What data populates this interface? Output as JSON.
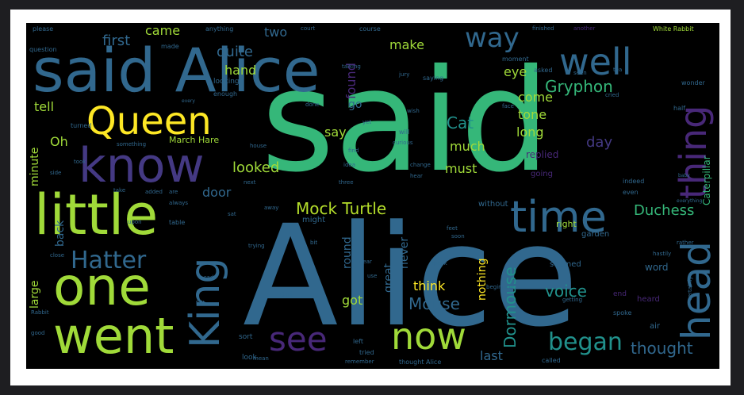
{
  "wordcloud": {
    "words": [
      {
        "text": "said",
        "color": "#35b779",
        "weight": 100
      },
      {
        "text": "Alice",
        "color": "#31688e",
        "weight": 95
      },
      {
        "text": "said Alice",
        "color": "#31688e",
        "weight": 45
      },
      {
        "text": "little",
        "color": "#a0da39",
        "weight": 40
      },
      {
        "text": "one",
        "color": "#a0da39",
        "weight": 38
      },
      {
        "text": "went",
        "color": "#a0da39",
        "weight": 36
      },
      {
        "text": "know",
        "color": "#443983",
        "weight": 34
      },
      {
        "text": "Queen",
        "color": "#fde725",
        "weight": 30
      },
      {
        "text": "King",
        "color": "#31688e",
        "weight": 28
      },
      {
        "text": "head",
        "color": "#31688e",
        "weight": 28
      },
      {
        "text": "thing",
        "color": "#482878",
        "weight": 26
      },
      {
        "text": "time",
        "color": "#31688e",
        "weight": 26
      },
      {
        "text": "well",
        "color": "#31688e",
        "weight": 24
      },
      {
        "text": "now",
        "color": "#a0da39",
        "weight": 24
      },
      {
        "text": "see",
        "color": "#482878",
        "weight": 22
      },
      {
        "text": "Hatter",
        "color": "#31688e",
        "weight": 20
      },
      {
        "text": "way",
        "color": "#31688e",
        "weight": 19
      },
      {
        "text": "began",
        "color": "#21918c",
        "weight": 16
      },
      {
        "text": "Mock Turtle",
        "color": "#b5de2b",
        "weight": 12
      },
      {
        "text": "Gryphon",
        "color": "#35b779",
        "weight": 12
      },
      {
        "text": "Duchess",
        "color": "#35b779",
        "weight": 11
      },
      {
        "text": "Caterpillar",
        "color": "#35b779",
        "weight": 8
      },
      {
        "text": "thought",
        "color": "#31688e",
        "weight": 11
      },
      {
        "text": "Mouse",
        "color": "#31688e",
        "weight": 11
      },
      {
        "text": "Dormouse",
        "color": "#21918c",
        "weight": 10
      },
      {
        "text": "voice",
        "color": "#21918c",
        "weight": 10
      },
      {
        "text": "looked",
        "color": "#a0da39",
        "weight": 10
      },
      {
        "text": "Cat",
        "color": "#21918c",
        "weight": 10
      },
      {
        "text": "first",
        "color": "#31688e",
        "weight": 10
      },
      {
        "text": "quite",
        "color": "#31688e",
        "weight": 9
      },
      {
        "text": "hand",
        "color": "#a0da39",
        "weight": 9
      },
      {
        "text": "came",
        "color": "#a0da39",
        "weight": 9
      },
      {
        "text": "two",
        "color": "#31688e",
        "weight": 9
      },
      {
        "text": "make",
        "color": "#a0da39",
        "weight": 9
      },
      {
        "text": "found",
        "color": "#482878",
        "weight": 9
      },
      {
        "text": "eye",
        "color": "#a0da39",
        "weight": 9
      },
      {
        "text": "come",
        "color": "#a0da39",
        "weight": 9
      },
      {
        "text": "tone",
        "color": "#a0da39",
        "weight": 9
      },
      {
        "text": "long",
        "color": "#a0da39",
        "weight": 9
      },
      {
        "text": "day",
        "color": "#443983",
        "weight": 9
      },
      {
        "text": "much",
        "color": "#a0da39",
        "weight": 9
      },
      {
        "text": "must",
        "color": "#a0da39",
        "weight": 9
      },
      {
        "text": "say",
        "color": "#a0da39",
        "weight": 9
      },
      {
        "text": "go",
        "color": "#31688e",
        "weight": 8
      },
      {
        "text": "tell",
        "color": "#a0da39",
        "weight": 8
      },
      {
        "text": "Oh",
        "color": "#a0da39",
        "weight": 8
      },
      {
        "text": "door",
        "color": "#31688e",
        "weight": 8
      },
      {
        "text": "back",
        "color": "#31688e",
        "weight": 8
      },
      {
        "text": "minute",
        "color": "#a0da39",
        "weight": 8
      },
      {
        "text": "large",
        "color": "#a0da39",
        "weight": 8
      },
      {
        "text": "round",
        "color": "#31688e",
        "weight": 8
      },
      {
        "text": "great",
        "color": "#31688e",
        "weight": 8
      },
      {
        "text": "never",
        "color": "#31688e",
        "weight": 8
      },
      {
        "text": "nothing",
        "color": "#fde725",
        "weight": 8
      },
      {
        "text": "think",
        "color": "#fde725",
        "weight": 9
      },
      {
        "text": "got",
        "color": "#a0da39",
        "weight": 9
      },
      {
        "text": "last",
        "color": "#31688e",
        "weight": 9
      },
      {
        "text": "March Hare",
        "color": "#a0da39",
        "weight": 6
      },
      {
        "text": "White Rabbit",
        "color": "#a0da39",
        "weight": 4
      },
      {
        "text": "replied",
        "color": "#482878",
        "weight": 6
      },
      {
        "text": "going",
        "color": "#482878",
        "weight": 5
      },
      {
        "text": "word",
        "color": "#31688e",
        "weight": 6
      },
      {
        "text": "heard",
        "color": "#482878",
        "weight": 5
      },
      {
        "text": "seemed",
        "color": "#31688e",
        "weight": 5
      },
      {
        "text": "right",
        "color": "#a0da39",
        "weight": 5
      },
      {
        "text": "garden",
        "color": "#31688e",
        "weight": 5
      },
      {
        "text": "without",
        "color": "#31688e",
        "weight": 5
      },
      {
        "text": "might",
        "color": "#31688e",
        "weight": 5
      },
      {
        "text": "put",
        "color": "#31688e",
        "weight": 5
      },
      {
        "text": "end",
        "color": "#482878",
        "weight": 5
      },
      {
        "text": "air",
        "color": "#31688e",
        "weight": 5
      },
      {
        "text": "spoke",
        "color": "#31688e",
        "weight": 4
      },
      {
        "text": "called",
        "color": "#31688e",
        "weight": 4
      },
      {
        "text": "left",
        "color": "#31688e",
        "weight": 4
      },
      {
        "text": "tried",
        "color": "#31688e",
        "weight": 4
      },
      {
        "text": "look",
        "color": "#31688e",
        "weight": 4
      },
      {
        "text": "sort",
        "color": "#31688e",
        "weight": 4
      },
      {
        "text": "thought Alice",
        "color": "#31688e",
        "weight": 4
      },
      {
        "text": "course",
        "color": "#31688e",
        "weight": 4
      },
      {
        "text": "anything",
        "color": "#31688e",
        "weight": 4
      },
      {
        "text": "please",
        "color": "#31688e",
        "weight": 4
      },
      {
        "text": "question",
        "color": "#31688e",
        "weight": 4
      },
      {
        "text": "turned",
        "color": "#31688e",
        "weight": 4
      },
      {
        "text": "table",
        "color": "#31688e",
        "weight": 4
      },
      {
        "text": "mean",
        "color": "#31688e",
        "weight": 3
      },
      {
        "text": "feet",
        "color": "#31688e",
        "weight": 3
      },
      {
        "text": "wonder",
        "color": "#31688e",
        "weight": 4
      },
      {
        "text": "half",
        "color": "#31688e",
        "weight": 4
      },
      {
        "text": "moment",
        "color": "#31688e",
        "weight": 4
      },
      {
        "text": "asked",
        "color": "#31688e",
        "weight": 4
      },
      {
        "text": "saying",
        "color": "#31688e",
        "weight": 4
      },
      {
        "text": "talking",
        "color": "#31688e",
        "weight": 3
      },
      {
        "text": "jury",
        "color": "#31688e",
        "weight": 3
      },
      {
        "text": "court",
        "color": "#31688e",
        "weight": 3
      },
      {
        "text": "finished",
        "color": "#31688e",
        "weight": 3
      },
      {
        "text": "another",
        "color": "#482878",
        "weight": 3
      },
      {
        "text": "indeed",
        "color": "#31688e",
        "weight": 4
      },
      {
        "text": "even",
        "color": "#31688e",
        "weight": 4
      },
      {
        "text": "certainly",
        "color": "#31688e",
        "weight": 3
      },
      {
        "text": "hastily",
        "color": "#31688e",
        "weight": 3
      },
      {
        "text": "rather",
        "color": "#31688e",
        "weight": 3
      },
      {
        "text": "will",
        "color": "#31688e",
        "weight": 3
      },
      {
        "text": "wish",
        "color": "#31688e",
        "weight": 3
      },
      {
        "text": "curious",
        "color": "#31688e",
        "weight": 3
      },
      {
        "text": "change",
        "color": "#31688e",
        "weight": 3
      },
      {
        "text": "idea",
        "color": "#31688e",
        "weight": 3
      },
      {
        "text": "find",
        "color": "#31688e",
        "weight": 3
      },
      {
        "text": "hear",
        "color": "#31688e",
        "weight": 3
      },
      {
        "text": "house",
        "color": "#31688e",
        "weight": 3
      },
      {
        "text": "face",
        "color": "#31688e",
        "weight": 3
      },
      {
        "text": "done",
        "color": "#31688e",
        "weight": 3
      },
      {
        "text": "yet",
        "color": "#31688e",
        "weight": 3
      },
      {
        "text": "something",
        "color": "#31688e",
        "weight": 3
      },
      {
        "text": "three",
        "color": "#31688e",
        "weight": 3
      },
      {
        "text": "next",
        "color": "#31688e",
        "weight": 3
      },
      {
        "text": "added",
        "color": "#31688e",
        "weight": 3
      },
      {
        "text": "take",
        "color": "#31688e",
        "weight": 3
      },
      {
        "text": "are",
        "color": "#31688e",
        "weight": 3
      },
      {
        "text": "always",
        "color": "#31688e",
        "weight": 3
      },
      {
        "text": "upon",
        "color": "#31688e",
        "weight": 3
      },
      {
        "text": "sat",
        "color": "#31688e",
        "weight": 3
      },
      {
        "text": "away",
        "color": "#31688e",
        "weight": 3
      },
      {
        "text": "bit",
        "color": "#31688e",
        "weight": 3
      },
      {
        "text": "dear",
        "color": "#31688e",
        "weight": 3
      },
      {
        "text": "speak",
        "color": "#31688e",
        "weight": 3
      },
      {
        "text": "soon",
        "color": "#31688e",
        "weight": 3
      },
      {
        "text": "use",
        "color": "#31688e",
        "weight": 3
      },
      {
        "text": "sad",
        "color": "#31688e",
        "weight": 3
      },
      {
        "text": "felt",
        "color": "#31688e",
        "weight": 3
      },
      {
        "text": "Rabbit",
        "color": "#31688e",
        "weight": 3
      },
      {
        "text": "good",
        "color": "#31688e",
        "weight": 3
      },
      {
        "text": "trying",
        "color": "#31688e",
        "weight": 3
      },
      {
        "text": "close",
        "color": "#31688e",
        "weight": 3
      },
      {
        "text": "beginning",
        "color": "#31688e",
        "weight": 3
      },
      {
        "text": "getting",
        "color": "#31688e",
        "weight": 3
      },
      {
        "text": "remember",
        "color": "#31688e",
        "weight": 3
      },
      {
        "text": "made",
        "color": "#31688e",
        "weight": 3
      },
      {
        "text": "enough",
        "color": "#31688e",
        "weight": 3
      },
      {
        "text": "looking",
        "color": "#31688e",
        "weight": 4
      },
      {
        "text": "side",
        "color": "#31688e",
        "weight": 3
      },
      {
        "text": "took",
        "color": "#31688e",
        "weight": 3
      },
      {
        "text": "cried",
        "color": "#31688e",
        "weight": 3
      },
      {
        "text": "seen",
        "color": "#31688e",
        "weight": 3
      },
      {
        "text": "tea",
        "color": "#31688e",
        "weight": 3
      },
      {
        "text": "every",
        "color": "#31688e",
        "weight": 2
      },
      {
        "text": "baby",
        "color": "#31688e",
        "weight": 2
      },
      {
        "text": "everything",
        "color": "#31688e",
        "weight": 2
      }
    ]
  }
}
